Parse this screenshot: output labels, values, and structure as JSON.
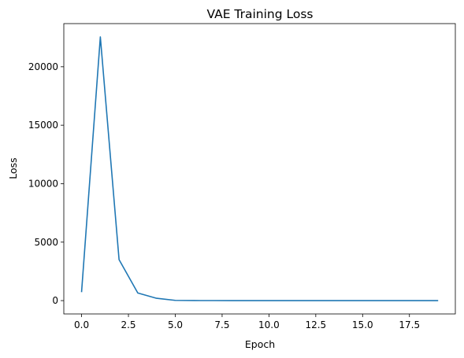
{
  "chart_data": {
    "type": "line",
    "title": "VAE Training Loss",
    "xlabel": "Epoch",
    "ylabel": "Loss",
    "xlim": [
      -0.95,
      19.95
    ],
    "ylim": [
      -1140,
      23690
    ],
    "x_ticks": [
      0.0,
      2.5,
      5.0,
      7.5,
      10.0,
      12.5,
      15.0,
      17.5
    ],
    "x_tick_labels": [
      "0.0",
      "2.5",
      "5.0",
      "7.5",
      "10.0",
      "12.5",
      "15.0",
      "17.5"
    ],
    "y_ticks": [
      0,
      5000,
      10000,
      15000,
      20000
    ],
    "y_tick_labels": [
      "0",
      "5000",
      "10000",
      "15000",
      "20000"
    ],
    "grid": false,
    "series": [
      {
        "color": "#1f77b4",
        "x": [
          0,
          1,
          2,
          3,
          4,
          5,
          6,
          7,
          8,
          9,
          10,
          11,
          12,
          13,
          14,
          15,
          16,
          17,
          18,
          19
        ],
        "y": [
          780,
          22550,
          3500,
          650,
          200,
          20,
          5,
          3,
          2,
          2,
          2,
          2,
          2,
          2,
          2,
          2,
          2,
          2,
          2,
          2
        ]
      }
    ]
  }
}
